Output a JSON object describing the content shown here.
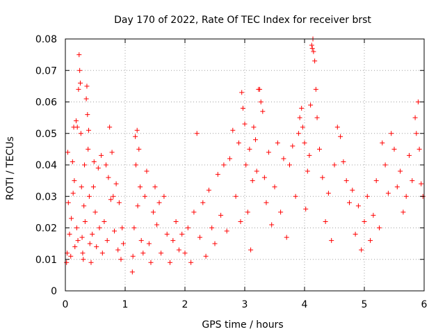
{
  "chart_data": {
    "type": "scatter",
    "title": "Day 170 of 2022, Rate Of TEC Index for receiver brst",
    "xlabel": "GPS time / hours",
    "ylabel": "ROTI / TECUs",
    "xlim": [
      0,
      6
    ],
    "ylim": [
      0,
      0.08
    ],
    "x_ticks": [
      0,
      1,
      2,
      3,
      4,
      5,
      6
    ],
    "x_tick_labels": [
      "0",
      "1",
      "2",
      "3",
      "4",
      "5",
      "6"
    ],
    "y_ticks": [
      0,
      0.01,
      0.02,
      0.03,
      0.04,
      0.05,
      0.06,
      0.07,
      0.08
    ],
    "y_tick_labels": [
      "0",
      "0.01",
      "0.02",
      "0.03",
      "0.04",
      "0.05",
      "0.06",
      "0.07",
      "0.08"
    ],
    "grid": true,
    "marker": "+",
    "series": [
      {
        "name": "ROTI",
        "color": "#ff0000",
        "points": [
          [
            0.02,
            0.009
          ],
          [
            0.03,
            0.012
          ],
          [
            0.04,
            0.044
          ],
          [
            0.05,
            0.028
          ],
          [
            0.07,
            0.018
          ],
          [
            0.09,
            0.011
          ],
          [
            0.1,
            0.023
          ],
          [
            0.12,
            0.041
          ],
          [
            0.13,
            0.031
          ],
          [
            0.14,
            0.052
          ],
          [
            0.15,
            0.035
          ],
          [
            0.16,
            0.014
          ],
          [
            0.18,
            0.054
          ],
          [
            0.19,
            0.02
          ],
          [
            0.2,
            0.052
          ],
          [
            0.21,
            0.016
          ],
          [
            0.22,
            0.064
          ],
          [
            0.23,
            0.075
          ],
          [
            0.24,
            0.07
          ],
          [
            0.25,
            0.066
          ],
          [
            0.26,
            0.05
          ],
          [
            0.27,
            0.033
          ],
          [
            0.28,
            0.017
          ],
          [
            0.29,
            0.012
          ],
          [
            0.3,
            0.01
          ],
          [
            0.31,
            0.027
          ],
          [
            0.32,
            0.04
          ],
          [
            0.33,
            0.022
          ],
          [
            0.35,
            0.061
          ],
          [
            0.36,
            0.065
          ],
          [
            0.37,
            0.056
          ],
          [
            0.38,
            0.045
          ],
          [
            0.39,
            0.051
          ],
          [
            0.4,
            0.03
          ],
          [
            0.41,
            0.015
          ],
          [
            0.43,
            0.009
          ],
          [
            0.45,
            0.018
          ],
          [
            0.47,
            0.033
          ],
          [
            0.48,
            0.041
          ],
          [
            0.5,
            0.025
          ],
          [
            0.52,
            0.014
          ],
          [
            0.55,
            0.039
          ],
          [
            0.57,
            0.02
          ],
          [
            0.6,
            0.043
          ],
          [
            0.62,
            0.012
          ],
          [
            0.65,
            0.022
          ],
          [
            0.68,
            0.04
          ],
          [
            0.7,
            0.016
          ],
          [
            0.72,
            0.036
          ],
          [
            0.74,
            0.052
          ],
          [
            0.76,
            0.029
          ],
          [
            0.78,
            0.044
          ],
          [
            0.8,
            0.03
          ],
          [
            0.82,
            0.019
          ],
          [
            0.85,
            0.034
          ],
          [
            0.88,
            0.013
          ],
          [
            0.9,
            0.028
          ],
          [
            0.93,
            0.01
          ],
          [
            0.95,
            0.02
          ],
          [
            0.97,
            0.015
          ],
          [
            1.12,
            0.006
          ],
          [
            1.13,
            0.011
          ],
          [
            1.15,
            0.02
          ],
          [
            1.17,
            0.049
          ],
          [
            1.18,
            0.04
          ],
          [
            1.2,
            0.051
          ],
          [
            1.21,
            0.027
          ],
          [
            1.23,
            0.045
          ],
          [
            1.25,
            0.033
          ],
          [
            1.27,
            0.016
          ],
          [
            1.3,
            0.012
          ],
          [
            1.33,
            0.03
          ],
          [
            1.36,
            0.038
          ],
          [
            1.4,
            0.015
          ],
          [
            1.43,
            0.009
          ],
          [
            1.47,
            0.025
          ],
          [
            1.5,
            0.033
          ],
          [
            1.53,
            0.021
          ],
          [
            1.57,
            0.028
          ],
          [
            1.6,
            0.012
          ],
          [
            1.65,
            0.03
          ],
          [
            1.7,
            0.018
          ],
          [
            1.75,
            0.009
          ],
          [
            1.8,
            0.016
          ],
          [
            1.85,
            0.022
          ],
          [
            1.9,
            0.013
          ],
          [
            1.95,
            0.018
          ],
          [
            2.0,
            0.012
          ],
          [
            2.05,
            0.02
          ],
          [
            2.1,
            0.009
          ],
          [
            2.15,
            0.025
          ],
          [
            2.2,
            0.05
          ],
          [
            2.25,
            0.017
          ],
          [
            2.3,
            0.028
          ],
          [
            2.35,
            0.011
          ],
          [
            2.4,
            0.032
          ],
          [
            2.45,
            0.02
          ],
          [
            2.5,
            0.015
          ],
          [
            2.55,
            0.037
          ],
          [
            2.6,
            0.024
          ],
          [
            2.65,
            0.04
          ],
          [
            2.7,
            0.019
          ],
          [
            2.75,
            0.042
          ],
          [
            2.8,
            0.051
          ],
          [
            2.85,
            0.03
          ],
          [
            2.9,
            0.047
          ],
          [
            2.93,
            0.022
          ],
          [
            2.95,
            0.063
          ],
          [
            2.97,
            0.058
          ],
          [
            3.0,
            0.053
          ],
          [
            3.02,
            0.04
          ],
          [
            3.05,
            0.025
          ],
          [
            3.08,
            0.045
          ],
          [
            3.1,
            0.013
          ],
          [
            3.13,
            0.035
          ],
          [
            3.15,
            0.052
          ],
          [
            3.18,
            0.048
          ],
          [
            3.2,
            0.038
          ],
          [
            3.23,
            0.064
          ],
          [
            3.25,
            0.064
          ],
          [
            3.27,
            0.06
          ],
          [
            3.3,
            0.057
          ],
          [
            3.33,
            0.036
          ],
          [
            3.36,
            0.028
          ],
          [
            3.4,
            0.044
          ],
          [
            3.45,
            0.021
          ],
          [
            3.5,
            0.033
          ],
          [
            3.55,
            0.047
          ],
          [
            3.6,
            0.025
          ],
          [
            3.65,
            0.042
          ],
          [
            3.7,
            0.017
          ],
          [
            3.75,
            0.04
          ],
          [
            3.8,
            0.046
          ],
          [
            3.85,
            0.03
          ],
          [
            3.9,
            0.05
          ],
          [
            3.92,
            0.055
          ],
          [
            3.95,
            0.058
          ],
          [
            3.97,
            0.052
          ],
          [
            4.0,
            0.047
          ],
          [
            4.02,
            0.026
          ],
          [
            4.05,
            0.038
          ],
          [
            4.08,
            0.043
          ],
          [
            4.1,
            0.059
          ],
          [
            4.12,
            0.078
          ],
          [
            4.13,
            0.077
          ],
          [
            4.14,
            0.08
          ],
          [
            4.15,
            0.076
          ],
          [
            4.17,
            0.073
          ],
          [
            4.19,
            0.064
          ],
          [
            4.21,
            0.055
          ],
          [
            4.25,
            0.045
          ],
          [
            4.3,
            0.036
          ],
          [
            4.35,
            0.022
          ],
          [
            4.4,
            0.031
          ],
          [
            4.45,
            0.016
          ],
          [
            4.5,
            0.04
          ],
          [
            4.55,
            0.052
          ],
          [
            4.6,
            0.049
          ],
          [
            4.65,
            0.041
          ],
          [
            4.7,
            0.035
          ],
          [
            4.75,
            0.028
          ],
          [
            4.8,
            0.032
          ],
          [
            4.85,
            0.018
          ],
          [
            4.9,
            0.027
          ],
          [
            4.95,
            0.013
          ],
          [
            5.0,
            0.022
          ],
          [
            5.05,
            0.03
          ],
          [
            5.1,
            0.016
          ],
          [
            5.15,
            0.024
          ],
          [
            5.2,
            0.035
          ],
          [
            5.25,
            0.02
          ],
          [
            5.3,
            0.047
          ],
          [
            5.35,
            0.04
          ],
          [
            5.4,
            0.031
          ],
          [
            5.45,
            0.05
          ],
          [
            5.5,
            0.045
          ],
          [
            5.55,
            0.033
          ],
          [
            5.6,
            0.038
          ],
          [
            5.65,
            0.025
          ],
          [
            5.7,
            0.03
          ],
          [
            5.75,
            0.043
          ],
          [
            5.8,
            0.035
          ],
          [
            5.85,
            0.055
          ],
          [
            5.87,
            0.05
          ],
          [
            5.9,
            0.06
          ],
          [
            5.92,
            0.045
          ],
          [
            5.95,
            0.034
          ],
          [
            5.98,
            0.03
          ]
        ]
      }
    ]
  }
}
